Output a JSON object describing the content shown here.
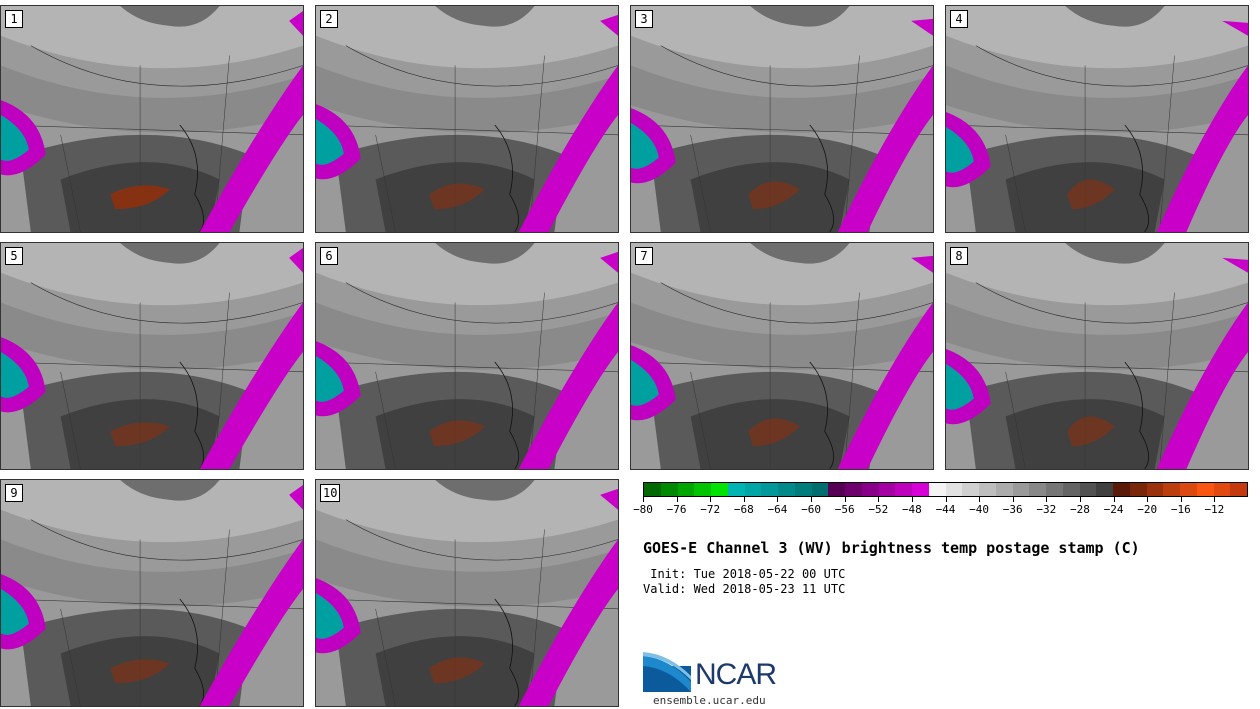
{
  "panels": [
    {
      "label": "1"
    },
    {
      "label": "2"
    },
    {
      "label": "3"
    },
    {
      "label": "4"
    },
    {
      "label": "5"
    },
    {
      "label": "6"
    },
    {
      "label": "7"
    },
    {
      "label": "8"
    },
    {
      "label": "9"
    },
    {
      "label": "10"
    }
  ],
  "colorbar": {
    "colors": [
      "#006a00",
      "#008800",
      "#00a600",
      "#00c400",
      "#00e200",
      "#00b4b4",
      "#00a6a6",
      "#009898",
      "#008a8a",
      "#007c7c",
      "#006e6e",
      "#550055",
      "#6e006e",
      "#880088",
      "#a200a2",
      "#bc00bc",
      "#d600d6",
      "#f4f4f4",
      "#e2e2e2",
      "#d0d0d0",
      "#bebebe",
      "#acacac",
      "#9a9a9a",
      "#888888",
      "#767676",
      "#646464",
      "#525252",
      "#404040",
      "#5a1a08",
      "#7a260a",
      "#9a320c",
      "#ba3e0e",
      "#da4a10",
      "#fa5612",
      "#e04a10",
      "#c43a0e"
    ],
    "ticks": [
      "−80",
      "−76",
      "−72",
      "−68",
      "−64",
      "−60",
      "−56",
      "−52",
      "−48",
      "−44",
      "−40",
      "−36",
      "−32",
      "−28",
      "−24",
      "−20",
      "−16",
      "−12"
    ]
  },
  "title": "GOES-E Channel 3 (WV) brightness temp postage stamp (C)",
  "init": " Init: Tue 2018-05-22 00 UTC",
  "valid": "Valid: Wed 2018-05-23 11 UTC",
  "logo_text": "NCAR",
  "site": "ensemble.ucar.edu"
}
